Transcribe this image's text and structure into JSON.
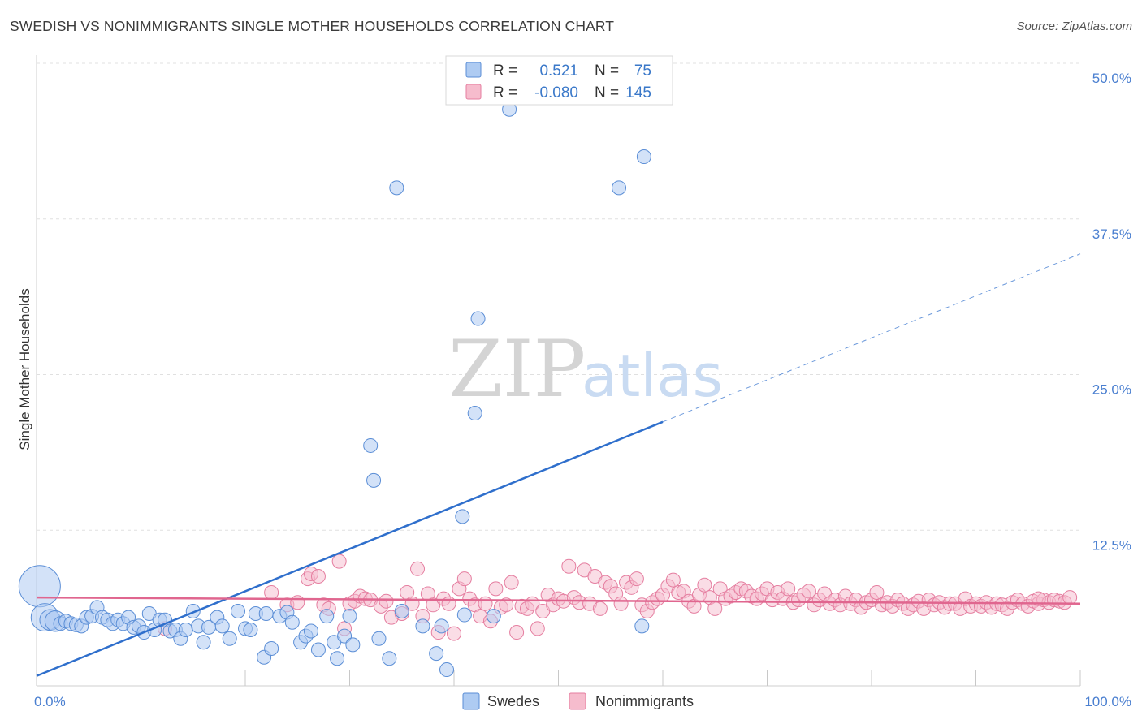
{
  "header": {
    "title": "SWEDISH VS NONIMMIGRANTS SINGLE MOTHER HOUSEHOLDS CORRELATION CHART",
    "source": "Source: ZipAtlas.com"
  },
  "watermark": {
    "zip": "ZIP",
    "atlas": "atlas"
  },
  "colors": {
    "swedes_fill": "#aecbf2",
    "swedes_stroke": "#5b8ed6",
    "swedes_line": "#2f6fcc",
    "nonimm_fill": "#f6bccd",
    "nonimm_stroke": "#e57ea0",
    "nonimm_line": "#e0668f",
    "tick_label": "#4a7fd0",
    "grid": "#e0e0e0"
  },
  "legend": {
    "rows": [
      {
        "r_label": "R =",
        "r_value": "0.521",
        "n_label": "N =",
        "n_value": "75"
      },
      {
        "r_label": "R =",
        "r_value": "-0.080",
        "n_label": "N =",
        "n_value": "145"
      }
    ]
  },
  "bottom_legend": [
    "Swedes",
    "Nonimmigrants"
  ],
  "chart_data": {
    "type": "scatter",
    "title": "SWEDISH VS NONIMMIGRANTS SINGLE MOTHER HOUSEHOLDS CORRELATION CHART",
    "xlabel": "",
    "ylabel": "Single Mother Households",
    "xlim": [
      0,
      100
    ],
    "ylim": [
      0,
      50
    ],
    "x_tick_labels": [
      "0.0%",
      "100.0%"
    ],
    "y_ticks": [
      12.5,
      25.0,
      37.5,
      50.0
    ],
    "y_tick_labels": [
      "12.5%",
      "25.0%",
      "37.5%",
      "50.0%"
    ],
    "grid": "horizontal dashed",
    "legend_position": "top-center",
    "series": [
      {
        "name": "Swedes",
        "r": 0.521,
        "n": 75,
        "trend": {
          "x0": 0,
          "y0": 0.8,
          "x1": 60,
          "y1": 21.2,
          "dashed_to_x": 100,
          "dashed_y": 34.7
        },
        "points": [
          [
            0.3,
            8.0,
            3
          ],
          [
            0.8,
            5.5,
            2
          ],
          [
            1.3,
            5.3,
            1.5
          ],
          [
            1.8,
            5.2,
            1.5
          ],
          [
            2.3,
            5.0,
            1
          ],
          [
            2.8,
            5.2,
            1
          ],
          [
            3.3,
            5.0,
            1
          ],
          [
            3.8,
            4.9,
            1
          ],
          [
            4.3,
            4.8,
            1
          ],
          [
            4.8,
            5.5,
            1
          ],
          [
            5.3,
            5.6,
            1
          ],
          [
            5.8,
            6.3,
            1
          ],
          [
            6.3,
            5.5,
            1
          ],
          [
            6.8,
            5.3,
            1
          ],
          [
            7.3,
            5.0,
            1
          ],
          [
            7.8,
            5.3,
            1
          ],
          [
            8.3,
            5.0,
            1
          ],
          [
            8.8,
            5.5,
            1
          ],
          [
            9.3,
            4.7,
            1
          ],
          [
            9.8,
            4.8,
            1
          ],
          [
            10.3,
            4.3,
            1
          ],
          [
            10.8,
            5.8,
            1
          ],
          [
            11.3,
            4.5,
            1
          ],
          [
            11.8,
            5.3,
            1
          ],
          [
            12.3,
            5.3,
            1
          ],
          [
            12.8,
            4.4,
            1
          ],
          [
            13.3,
            4.5,
            1
          ],
          [
            13.8,
            3.8,
            1
          ],
          [
            14.3,
            4.5,
            1
          ],
          [
            15.0,
            6.0,
            1
          ],
          [
            15.5,
            4.8,
            1
          ],
          [
            16.0,
            3.5,
            1
          ],
          [
            16.5,
            4.7,
            1
          ],
          [
            17.3,
            5.5,
            1
          ],
          [
            17.8,
            4.8,
            1
          ],
          [
            18.5,
            3.8,
            1
          ],
          [
            19.3,
            6.0,
            1
          ],
          [
            20.0,
            4.6,
            1
          ],
          [
            20.5,
            4.5,
            1
          ],
          [
            21.0,
            5.8,
            1
          ],
          [
            22.0,
            5.8,
            1
          ],
          [
            21.8,
            2.3,
            1
          ],
          [
            22.5,
            3.0,
            1
          ],
          [
            23.3,
            5.6,
            1
          ],
          [
            24.0,
            5.9,
            1
          ],
          [
            24.5,
            5.1,
            1
          ],
          [
            25.3,
            3.5,
            1
          ],
          [
            25.8,
            4.0,
            1
          ],
          [
            26.3,
            4.4,
            1
          ],
          [
            27.0,
            2.9,
            1
          ],
          [
            27.8,
            5.6,
            1
          ],
          [
            28.5,
            3.5,
            1
          ],
          [
            28.8,
            2.2,
            1
          ],
          [
            29.5,
            4.0,
            1
          ],
          [
            30.0,
            5.6,
            1
          ],
          [
            30.3,
            3.3,
            1
          ],
          [
            32.0,
            19.3,
            1
          ],
          [
            32.3,
            16.5,
            1
          ],
          [
            32.8,
            3.8,
            1
          ],
          [
            33.8,
            2.2,
            1
          ],
          [
            35.0,
            6.0,
            1
          ],
          [
            34.5,
            40.0,
            1
          ],
          [
            37.0,
            4.8,
            1
          ],
          [
            38.3,
            2.6,
            1
          ],
          [
            38.8,
            4.8,
            1
          ],
          [
            39.3,
            1.3,
            1
          ],
          [
            41.0,
            5.7,
            1
          ],
          [
            40.8,
            13.6,
            1
          ],
          [
            42.3,
            29.5,
            1
          ],
          [
            42.0,
            21.9,
            1
          ],
          [
            45.3,
            46.3,
            1
          ],
          [
            55.8,
            40.0,
            1
          ],
          [
            58.2,
            42.5,
            1
          ],
          [
            58.0,
            4.8,
            1
          ],
          [
            43.8,
            5.6,
            1
          ]
        ]
      },
      {
        "name": "Nonimmigrants",
        "r": -0.08,
        "n": 145,
        "trend": {
          "x0": 0,
          "y0": 7.1,
          "x1": 100,
          "y1": 6.6
        },
        "points": [
          [
            12.3,
            4.6,
            1
          ],
          [
            22.5,
            7.5,
            1
          ],
          [
            24.0,
            6.5,
            1
          ],
          [
            25.0,
            6.7,
            1
          ],
          [
            26.0,
            8.6,
            1
          ],
          [
            26.3,
            9.0,
            1
          ],
          [
            27.0,
            8.8,
            1
          ],
          [
            27.5,
            6.5,
            1
          ],
          [
            28.0,
            6.2,
            1
          ],
          [
            29.0,
            10.0,
            1
          ],
          [
            29.5,
            4.6,
            1
          ],
          [
            30.0,
            6.6,
            1
          ],
          [
            30.5,
            6.8,
            1
          ],
          [
            31.0,
            7.2,
            1
          ],
          [
            31.5,
            7.0,
            1
          ],
          [
            32.0,
            6.9,
            1
          ],
          [
            33.0,
            6.4,
            1
          ],
          [
            33.5,
            6.8,
            1
          ],
          [
            34.0,
            5.5,
            1
          ],
          [
            35.0,
            5.8,
            1
          ],
          [
            35.5,
            7.5,
            1
          ],
          [
            36.0,
            6.6,
            1
          ],
          [
            36.5,
            9.4,
            1
          ],
          [
            37.0,
            5.6,
            1
          ],
          [
            37.5,
            7.4,
            1
          ],
          [
            38.0,
            6.5,
            1
          ],
          [
            38.5,
            4.3,
            1
          ],
          [
            39.0,
            7.0,
            1
          ],
          [
            39.5,
            6.6,
            1
          ],
          [
            40.0,
            4.2,
            1
          ],
          [
            40.5,
            7.8,
            1
          ],
          [
            41.0,
            8.6,
            1
          ],
          [
            41.5,
            7.0,
            1
          ],
          [
            42.0,
            6.5,
            1
          ],
          [
            42.5,
            5.6,
            1
          ],
          [
            43.0,
            6.6,
            1
          ],
          [
            43.5,
            5.2,
            1
          ],
          [
            44.0,
            7.8,
            1
          ],
          [
            44.5,
            6.3,
            1
          ],
          [
            45.0,
            6.5,
            1
          ],
          [
            45.5,
            8.3,
            1
          ],
          [
            46.0,
            4.3,
            1
          ],
          [
            46.5,
            6.4,
            1
          ],
          [
            47.0,
            6.2,
            1
          ],
          [
            47.5,
            6.6,
            1
          ],
          [
            48.0,
            4.6,
            1
          ],
          [
            48.5,
            6.0,
            1
          ],
          [
            49.0,
            7.3,
            1
          ],
          [
            49.5,
            6.5,
            1
          ],
          [
            50.0,
            7.0,
            1
          ],
          [
            50.5,
            6.8,
            1
          ],
          [
            51.0,
            9.6,
            1
          ],
          [
            51.5,
            7.1,
            1
          ],
          [
            52.0,
            6.7,
            1
          ],
          [
            52.5,
            9.3,
            1
          ],
          [
            53.0,
            6.6,
            1
          ],
          [
            53.5,
            8.8,
            1
          ],
          [
            54.0,
            6.2,
            1
          ],
          [
            54.5,
            8.3,
            1
          ],
          [
            55.0,
            8.0,
            1
          ],
          [
            55.5,
            7.4,
            1
          ],
          [
            56.0,
            6.6,
            1
          ],
          [
            56.5,
            8.3,
            1
          ],
          [
            57.0,
            7.9,
            1
          ],
          [
            57.5,
            8.6,
            1
          ],
          [
            58.0,
            6.5,
            1
          ],
          [
            58.5,
            6.0,
            1
          ],
          [
            59.0,
            6.7,
            1
          ],
          [
            59.5,
            7.0,
            1
          ],
          [
            60.0,
            7.3,
            1
          ],
          [
            60.5,
            8.0,
            1
          ],
          [
            61.0,
            8.5,
            1
          ],
          [
            61.5,
            7.5,
            1
          ],
          [
            62.0,
            7.6,
            1
          ],
          [
            62.5,
            6.8,
            1
          ],
          [
            63.0,
            6.4,
            1
          ],
          [
            63.5,
            7.3,
            1
          ],
          [
            64.0,
            8.1,
            1
          ],
          [
            64.5,
            7.1,
            1
          ],
          [
            65.0,
            6.2,
            1
          ],
          [
            65.5,
            7.8,
            1
          ],
          [
            66.0,
            7.0,
            1
          ],
          [
            66.5,
            7.2,
            1
          ],
          [
            67.0,
            7.5,
            1
          ],
          [
            67.5,
            7.8,
            1
          ],
          [
            68.0,
            7.6,
            1
          ],
          [
            68.5,
            7.2,
            1
          ],
          [
            69.0,
            7.0,
            1
          ],
          [
            69.5,
            7.4,
            1
          ],
          [
            70.0,
            7.8,
            1
          ],
          [
            70.5,
            6.9,
            1
          ],
          [
            71.0,
            7.5,
            1
          ],
          [
            71.5,
            7.0,
            1
          ],
          [
            72.0,
            7.8,
            1
          ],
          [
            72.5,
            6.7,
            1
          ],
          [
            73.0,
            6.9,
            1
          ],
          [
            73.5,
            7.3,
            1
          ],
          [
            74.0,
            7.6,
            1
          ],
          [
            74.5,
            6.5,
            1
          ],
          [
            75.0,
            6.9,
            1
          ],
          [
            75.5,
            7.4,
            1
          ],
          [
            76.0,
            6.6,
            1
          ],
          [
            76.5,
            6.9,
            1
          ],
          [
            77.0,
            6.5,
            1
          ],
          [
            77.5,
            7.2,
            1
          ],
          [
            78.0,
            6.6,
            1
          ],
          [
            78.5,
            6.9,
            1
          ],
          [
            79.0,
            6.3,
            1
          ],
          [
            79.5,
            6.7,
            1
          ],
          [
            80.0,
            6.9,
            1
          ],
          [
            80.5,
            7.5,
            1
          ],
          [
            81.0,
            6.5,
            1
          ],
          [
            81.5,
            6.7,
            1
          ],
          [
            82.0,
            6.4,
            1
          ],
          [
            82.5,
            6.9,
            1
          ],
          [
            83.0,
            6.6,
            1
          ],
          [
            83.5,
            6.2,
            1
          ],
          [
            84.0,
            6.5,
            1
          ],
          [
            84.5,
            6.8,
            1
          ],
          [
            85.0,
            6.2,
            1
          ],
          [
            85.5,
            6.9,
            1
          ],
          [
            86.0,
            6.5,
            1
          ],
          [
            86.5,
            6.7,
            1
          ],
          [
            87.0,
            6.3,
            1
          ],
          [
            87.5,
            6.6,
            1
          ],
          [
            88.0,
            6.6,
            1
          ],
          [
            88.5,
            6.2,
            1
          ],
          [
            89.0,
            7.0,
            1
          ],
          [
            89.5,
            6.4,
            1
          ],
          [
            90.0,
            6.6,
            1
          ],
          [
            90.5,
            6.4,
            1
          ],
          [
            91.0,
            6.7,
            1
          ],
          [
            91.5,
            6.3,
            1
          ],
          [
            92.0,
            6.6,
            1
          ],
          [
            92.5,
            6.5,
            1
          ],
          [
            93.0,
            6.2,
            1
          ],
          [
            93.5,
            6.7,
            1
          ],
          [
            94.0,
            6.9,
            1
          ],
          [
            94.5,
            6.6,
            1
          ],
          [
            95.0,
            6.4,
            1
          ],
          [
            95.5,
            6.8,
            1
          ],
          [
            96.0,
            6.6,
            1
          ],
          [
            96.5,
            6.9,
            1
          ],
          [
            97.0,
            6.7,
            1
          ],
          [
            97.5,
            6.9,
            1
          ],
          [
            98.0,
            6.8,
            1
          ],
          [
            98.5,
            6.7,
            1
          ],
          [
            99.0,
            7.1,
            1
          ],
          [
            96.0,
            7.0,
            1
          ]
        ]
      }
    ]
  }
}
